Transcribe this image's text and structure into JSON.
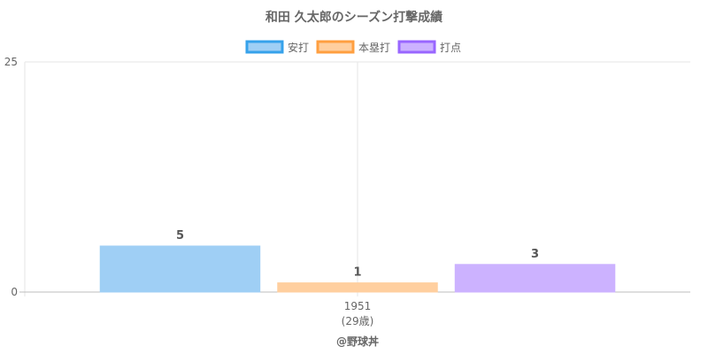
{
  "chart_data": {
    "type": "bar",
    "title": "和田 久太郎のシーズン打撃成績",
    "categories": [
      "1951"
    ],
    "category_sublabels": [
      "(29歳)"
    ],
    "series": [
      {
        "name": "安打",
        "values": [
          5
        ],
        "fill": "#9fcff5",
        "stroke": "#36a2eb"
      },
      {
        "name": "本塁打",
        "values": [
          1
        ],
        "fill": "#ffcf9f",
        "stroke": "#ff9f40"
      },
      {
        "name": "打点",
        "values": [
          3
        ],
        "fill": "#ccb2ff",
        "stroke": "#9966ff"
      }
    ],
    "y_ticks": [
      0,
      25
    ],
    "ylim": [
      0,
      25
    ],
    "grid": true,
    "legend_position": "top"
  },
  "footer": {
    "credit": "@野球丼"
  }
}
